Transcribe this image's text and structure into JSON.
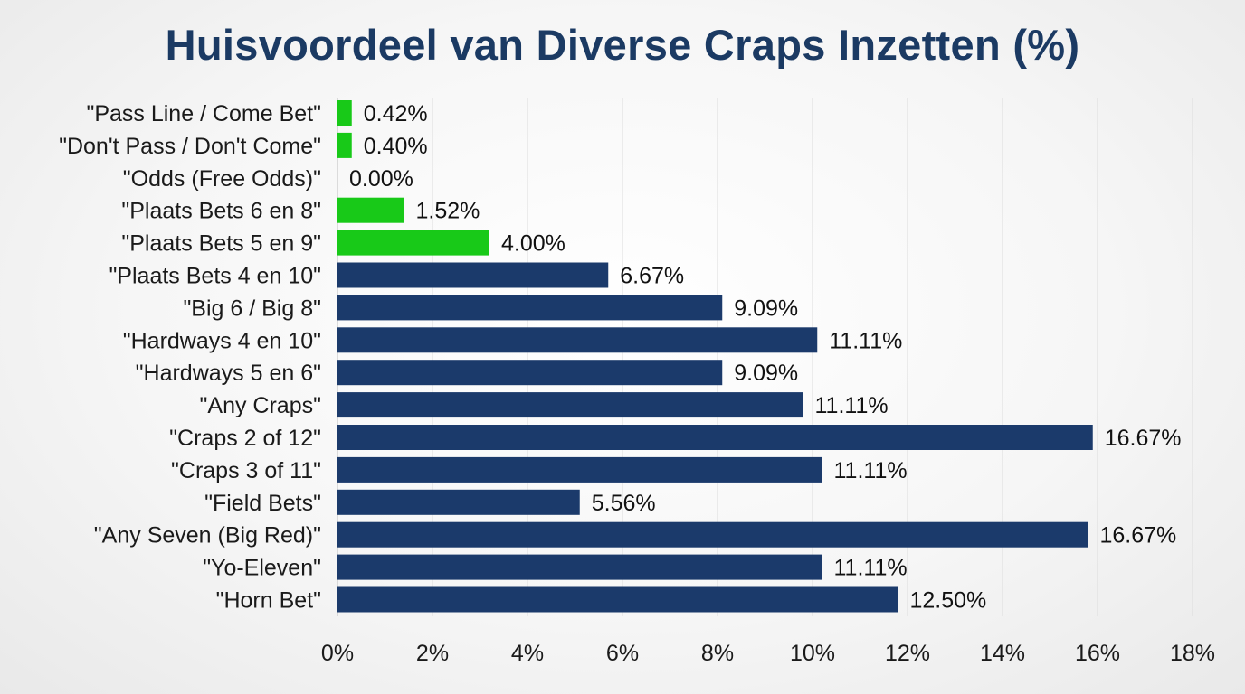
{
  "chart_data": {
    "type": "bar",
    "orientation": "horizontal",
    "title": "Huisvoordeel van Diverse Craps Inzetten (%)",
    "xlabel": "",
    "ylabel": "",
    "xlim": [
      0,
      18
    ],
    "x_ticks": [
      "0%",
      "2%",
      "4%",
      "6%",
      "8%",
      "10%",
      "12%",
      "14%",
      "16%",
      "18%"
    ],
    "grid": "vertical",
    "legend": "none",
    "colors": {
      "low": "#18c918",
      "high": "#1b3a6b"
    },
    "categories": [
      "\"Pass Line / Come Bet\"",
      "\"Don't Pass / Don't Come\"",
      "\"Odds (Free Odds)\"",
      "\"Plaats Bets 6 en 8\"",
      "\"Plaats Bets 5 en 9\"",
      "\"Plaats Bets 4 en 10\"",
      "\"Big 6 / Big 8\"",
      "\"Hardways 4 en 10\"",
      "\"Hardways 5 en 6\"",
      "\"Any Craps\"",
      "\"Craps 2 of 12\"",
      "\"Craps 3 of 11\"",
      "\"Field Bets\"",
      "\"Any Seven (Big Red)\"",
      "\"Yo-Eleven\"",
      "\"Horn Bet\""
    ],
    "values": [
      0.42,
      0.4,
      0.0,
      1.52,
      4.0,
      6.67,
      9.09,
      11.11,
      9.09,
      11.11,
      16.67,
      11.11,
      5.56,
      16.67,
      11.11,
      12.5
    ],
    "bar_lengths": [
      0.3,
      0.3,
      0.0,
      1.4,
      3.2,
      5.7,
      8.1,
      10.1,
      8.1,
      9.8,
      15.9,
      10.2,
      5.1,
      15.8,
      10.2,
      11.8
    ],
    "data_labels": [
      "0.42%",
      "0.40%",
      "0.00%",
      "1.52%",
      "4.00%",
      "6.67%",
      "9.09%",
      "11.11%",
      "9.09%",
      "11.11%",
      "16.67%",
      "11.11%",
      "5.56%",
      "16.67%",
      "11.11%",
      "12.50%"
    ],
    "bar_colors": [
      "low",
      "low",
      "low",
      "low",
      "low",
      "high",
      "high",
      "high",
      "high",
      "high",
      "high",
      "high",
      "high",
      "high",
      "high",
      "high"
    ]
  }
}
